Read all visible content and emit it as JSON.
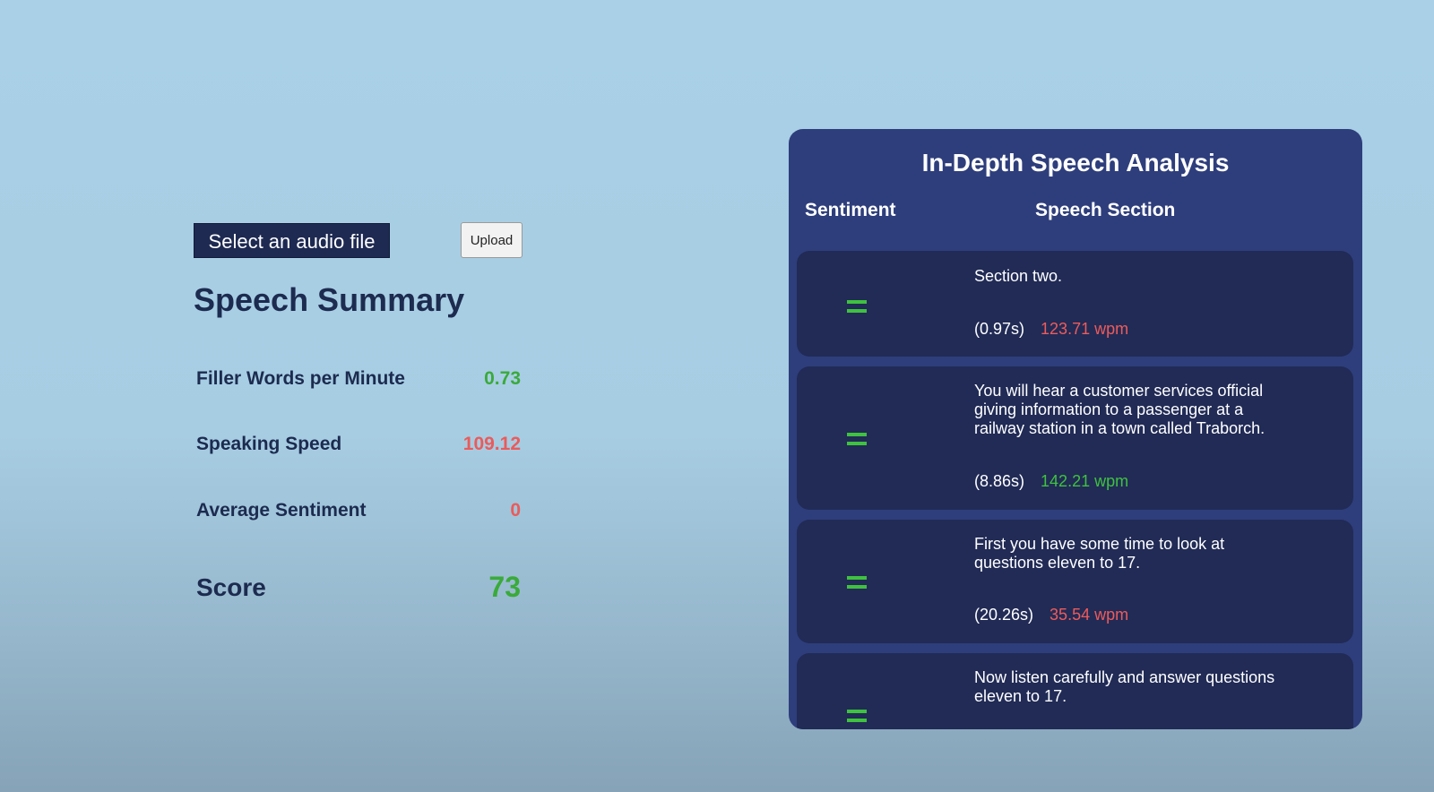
{
  "controls": {
    "select_file_label": "Select an audio file",
    "upload_label": "Upload"
  },
  "summary": {
    "title": "Speech Summary",
    "filler_words_label": "Filler Words per Minute",
    "filler_words_value": "0.73",
    "speaking_speed_label": "Speaking Speed",
    "speaking_speed_value": "109.12",
    "average_sentiment_label": "Average Sentiment",
    "average_sentiment_value": "0",
    "score_label": "Score",
    "score_value": "73"
  },
  "analysis": {
    "title": "In-Depth Speech Analysis",
    "col_sentiment": "Sentiment",
    "col_section": "Speech Section",
    "sections": [
      {
        "sentiment_icon": "neutral-equals-icon",
        "text": "Section two.",
        "duration": "(0.97s)",
        "wpm": "123.71 wpm",
        "wpm_status": "bad"
      },
      {
        "sentiment_icon": "neutral-equals-icon",
        "text": "You will hear a customer services official giving information to a passenger at a railway station in a town called Traborch.",
        "duration": "(8.86s)",
        "wpm": "142.21 wpm",
        "wpm_status": "good"
      },
      {
        "sentiment_icon": "neutral-equals-icon",
        "text": "First you have some time to look at questions eleven to 17.",
        "duration": "(20.26s)",
        "wpm": "35.54 wpm",
        "wpm_status": "bad"
      },
      {
        "sentiment_icon": "neutral-equals-icon",
        "text": "Now listen carefully and answer questions eleven to 17.",
        "duration": "",
        "wpm": "",
        "wpm_status": ""
      }
    ]
  },
  "colors": {
    "good": "#3fc23f",
    "bad": "#ee5b5b",
    "panel": "#2e3e7c",
    "card": "#212b56",
    "text_dark": "#1c2b4f"
  }
}
